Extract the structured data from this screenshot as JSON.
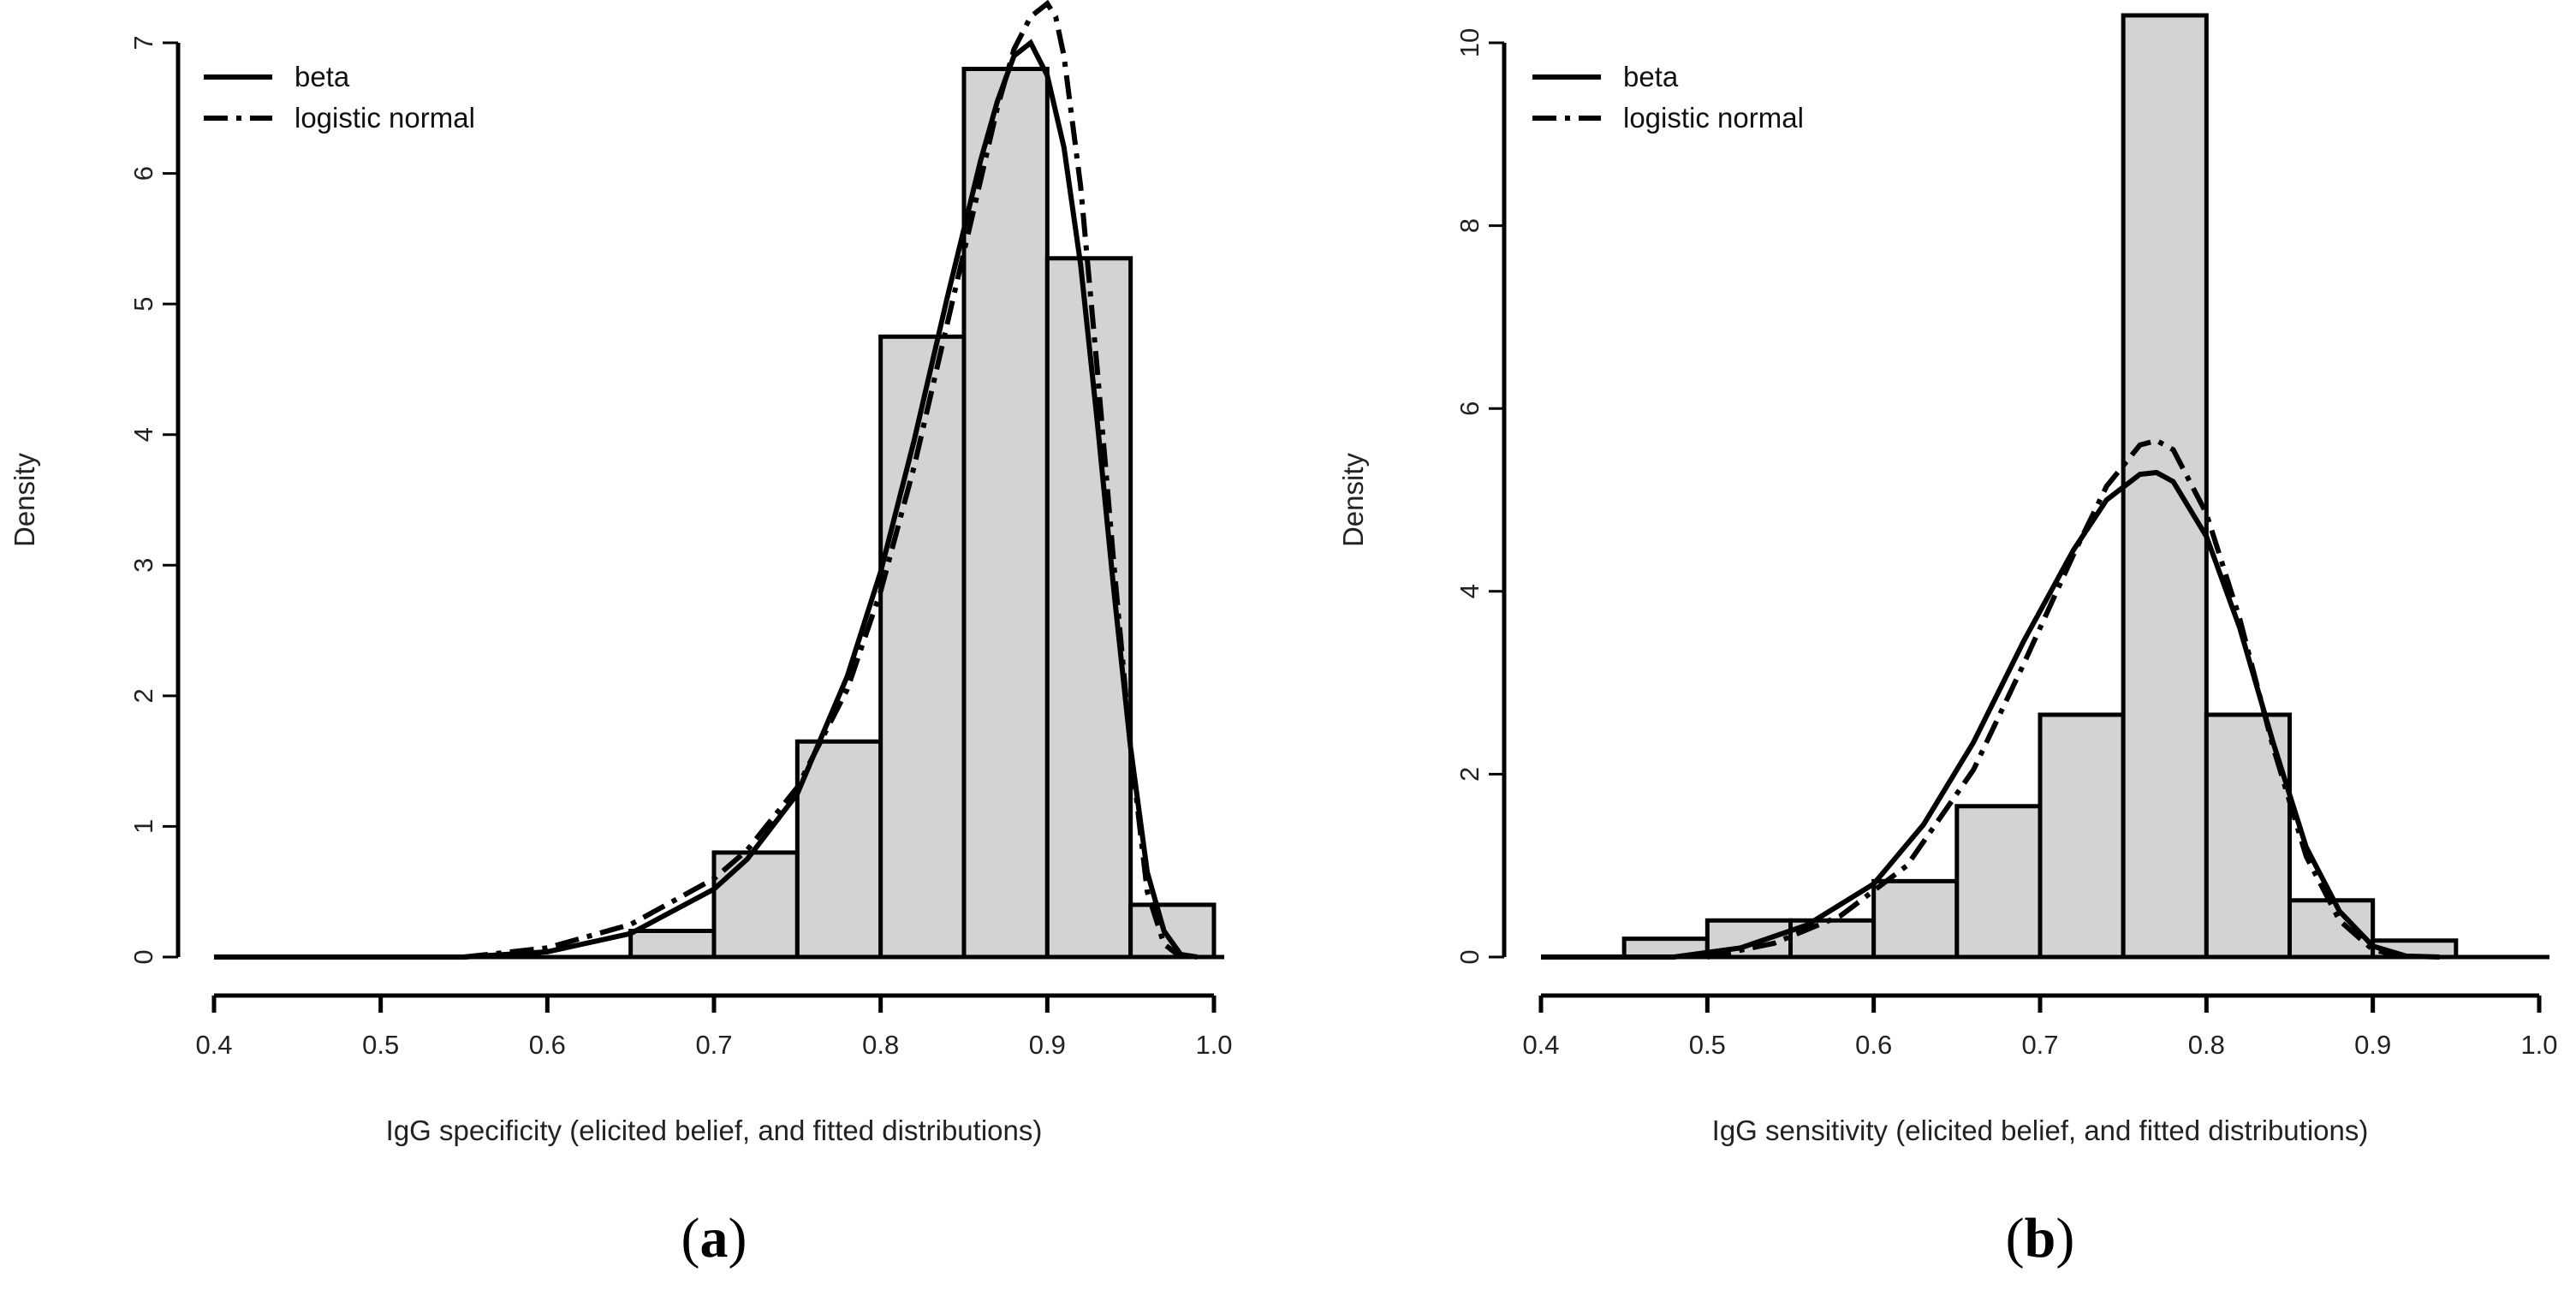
{
  "chart_data": [
    {
      "type": "histogram",
      "panel_label": "a",
      "xlabel": "IgG specificity (elicited belief, and fitted distributions)",
      "ylabel": "Density",
      "xlim": [
        0.4,
        1.0
      ],
      "ylim": [
        0,
        7
      ],
      "xticks": [
        "0.4",
        "0.5",
        "0.6",
        "0.7",
        "0.8",
        "0.9",
        "1.0"
      ],
      "yticks": [
        "0",
        "1",
        "2",
        "3",
        "4",
        "5",
        "6",
        "7"
      ],
      "bins": [
        {
          "x0": 0.65,
          "x1": 0.7,
          "density": 0.2
        },
        {
          "x0": 0.7,
          "x1": 0.75,
          "density": 0.8
        },
        {
          "x0": 0.75,
          "x1": 0.8,
          "density": 1.65
        },
        {
          "x0": 0.8,
          "x1": 0.85,
          "density": 4.75
        },
        {
          "x0": 0.85,
          "x1": 0.9,
          "density": 6.8
        },
        {
          "x0": 0.9,
          "x1": 0.95,
          "density": 5.35
        },
        {
          "x0": 0.95,
          "x1": 1.0,
          "density": 0.4
        }
      ],
      "series": [
        {
          "name": "beta",
          "style": "solid",
          "x": [
            0.4,
            0.55,
            0.6,
            0.65,
            0.7,
            0.72,
            0.75,
            0.78,
            0.8,
            0.82,
            0.84,
            0.86,
            0.87,
            0.88,
            0.89,
            0.9,
            0.91,
            0.92,
            0.93,
            0.94,
            0.95,
            0.96,
            0.97,
            0.98,
            0.99
          ],
          "y": [
            0.0,
            0.0,
            0.04,
            0.18,
            0.52,
            0.75,
            1.25,
            2.15,
            2.95,
            3.95,
            5.05,
            6.1,
            6.55,
            6.9,
            7.0,
            6.75,
            6.2,
            5.3,
            4.1,
            2.8,
            1.6,
            0.65,
            0.2,
            0.02,
            0.0
          ]
        },
        {
          "name": "logistic normal",
          "style": "dashdot",
          "x": [
            0.55,
            0.6,
            0.65,
            0.7,
            0.72,
            0.75,
            0.78,
            0.8,
            0.82,
            0.84,
            0.86,
            0.87,
            0.88,
            0.89,
            0.9,
            0.905,
            0.91,
            0.92,
            0.93,
            0.94,
            0.95,
            0.96,
            0.97,
            0.98
          ],
          "y": [
            0.0,
            0.07,
            0.25,
            0.6,
            0.82,
            1.3,
            2.05,
            2.8,
            3.75,
            4.85,
            5.95,
            6.5,
            6.95,
            7.2,
            7.3,
            7.2,
            6.9,
            5.9,
            4.5,
            3.0,
            1.6,
            0.5,
            0.1,
            0.0
          ]
        }
      ]
    },
    {
      "type": "histogram",
      "panel_label": "b",
      "xlabel": "IgG sensitivity (elicited belief, and fitted distributions)",
      "ylabel": "Density",
      "xlim": [
        0.4,
        1.0
      ],
      "ylim": [
        0,
        10
      ],
      "xticks": [
        "0.4",
        "0.5",
        "0.6",
        "0.7",
        "0.8",
        "0.9",
        "1.0"
      ],
      "yticks": [
        "0",
        "2",
        "4",
        "6",
        "8",
        "10"
      ],
      "bins": [
        {
          "x0": 0.45,
          "x1": 0.5,
          "density": 0.2
        },
        {
          "x0": 0.5,
          "x1": 0.55,
          "density": 0.4
        },
        {
          "x0": 0.55,
          "x1": 0.6,
          "density": 0.4
        },
        {
          "x0": 0.6,
          "x1": 0.65,
          "density": 0.83
        },
        {
          "x0": 0.65,
          "x1": 0.7,
          "density": 1.65
        },
        {
          "x0": 0.7,
          "x1": 0.75,
          "density": 2.65
        },
        {
          "x0": 0.75,
          "x1": 0.8,
          "density": 10.3
        },
        {
          "x0": 0.8,
          "x1": 0.85,
          "density": 2.65
        },
        {
          "x0": 0.85,
          "x1": 0.9,
          "density": 0.62
        },
        {
          "x0": 0.9,
          "x1": 0.95,
          "density": 0.18
        }
      ],
      "series": [
        {
          "name": "beta",
          "style": "solid",
          "x": [
            0.4,
            0.48,
            0.52,
            0.56,
            0.6,
            0.63,
            0.66,
            0.69,
            0.72,
            0.74,
            0.76,
            0.77,
            0.78,
            0.8,
            0.82,
            0.84,
            0.86,
            0.88,
            0.9,
            0.92,
            0.94
          ],
          "y": [
            0.0,
            0.0,
            0.1,
            0.35,
            0.8,
            1.45,
            2.35,
            3.45,
            4.45,
            5.0,
            5.28,
            5.3,
            5.2,
            4.6,
            3.6,
            2.35,
            1.2,
            0.5,
            0.12,
            0.01,
            0.0
          ]
        },
        {
          "name": "logistic normal",
          "style": "dashdot",
          "x": [
            0.5,
            0.54,
            0.58,
            0.62,
            0.66,
            0.69,
            0.72,
            0.74,
            0.76,
            0.77,
            0.78,
            0.8,
            0.82,
            0.84,
            0.86,
            0.88,
            0.9,
            0.92
          ],
          "y": [
            0.0,
            0.15,
            0.45,
            1.0,
            2.05,
            3.2,
            4.4,
            5.15,
            5.6,
            5.65,
            5.55,
            4.85,
            3.7,
            2.3,
            1.1,
            0.4,
            0.08,
            0.0
          ]
        }
      ]
    }
  ],
  "legend": {
    "items": [
      "beta",
      "logistic normal"
    ]
  }
}
